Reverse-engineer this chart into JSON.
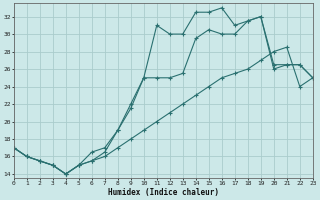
{
  "xlabel": "Humidex (Indice chaleur)",
  "bg_color": "#cce8e8",
  "grid_color": "#aacccc",
  "line_color": "#2a7070",
  "xlim": [
    0,
    23
  ],
  "ylim": [
    13.5,
    33.5
  ],
  "xticks": [
    0,
    1,
    2,
    3,
    4,
    5,
    6,
    7,
    8,
    9,
    10,
    11,
    12,
    13,
    14,
    15,
    16,
    17,
    18,
    19,
    20,
    21,
    22,
    23
  ],
  "yticks": [
    14,
    16,
    18,
    20,
    22,
    24,
    26,
    28,
    30,
    32
  ],
  "line1_x": [
    0,
    1,
    2,
    3,
    4,
    5,
    6,
    7,
    8,
    9,
    10,
    11,
    12,
    13,
    14,
    15,
    16,
    17,
    18,
    19,
    20,
    21,
    22,
    23
  ],
  "line1_y": [
    17.0,
    16.0,
    15.5,
    15.0,
    14.0,
    15.0,
    15.5,
    16.5,
    19.0,
    21.5,
    25.0,
    31.0,
    30.0,
    30.0,
    32.5,
    32.5,
    33.0,
    31.0,
    31.5,
    32.0,
    26.5,
    26.5,
    26.5,
    25.0
  ],
  "line2_x": [
    0,
    1,
    2,
    3,
    4,
    5,
    6,
    7,
    8,
    9,
    10,
    11,
    12,
    13,
    14,
    15,
    16,
    17,
    18,
    19,
    20,
    21,
    22,
    23
  ],
  "line2_y": [
    17.0,
    16.0,
    15.5,
    15.0,
    14.0,
    15.0,
    16.5,
    17.0,
    19.0,
    22.0,
    25.0,
    25.0,
    25.0,
    25.5,
    29.5,
    30.5,
    30.0,
    30.0,
    31.5,
    32.0,
    26.0,
    26.5,
    26.5,
    25.0
  ],
  "line3_x": [
    0,
    1,
    2,
    3,
    4,
    5,
    6,
    7,
    8,
    9,
    10,
    11,
    12,
    13,
    14,
    15,
    16,
    17,
    18,
    19,
    20,
    21,
    22,
    23
  ],
  "line3_y": [
    17.0,
    16.0,
    15.5,
    15.0,
    14.0,
    15.0,
    15.5,
    16.0,
    17.0,
    18.0,
    19.0,
    20.0,
    21.0,
    22.0,
    23.0,
    24.0,
    25.0,
    25.5,
    26.0,
    27.0,
    28.0,
    28.5,
    24.0,
    25.0
  ]
}
